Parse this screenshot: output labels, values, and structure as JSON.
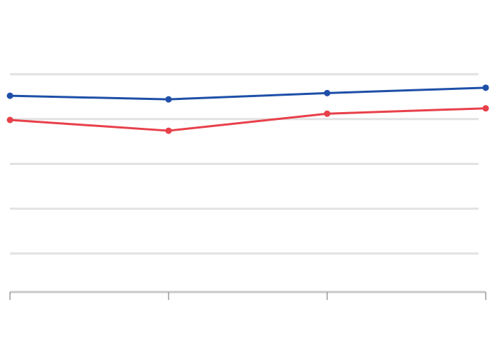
{
  "chart_data": {
    "type": "line",
    "title": "",
    "xlabel": "",
    "ylabel": "",
    "categories": [
      "",
      "",
      "",
      ""
    ],
    "y_ticks": [
      "",
      "",
      "",
      "",
      ""
    ],
    "ylim": [
      0,
      100
    ],
    "grid": true,
    "series": [
      {
        "name": "",
        "color": "#1f4fa8",
        "values": [
          88,
          86,
          89.5,
          92.5
        ]
      },
      {
        "name": "",
        "color": "#e8404a",
        "values": [
          74.5,
          68.5,
          78,
          81
        ]
      }
    ],
    "source": ""
  }
}
